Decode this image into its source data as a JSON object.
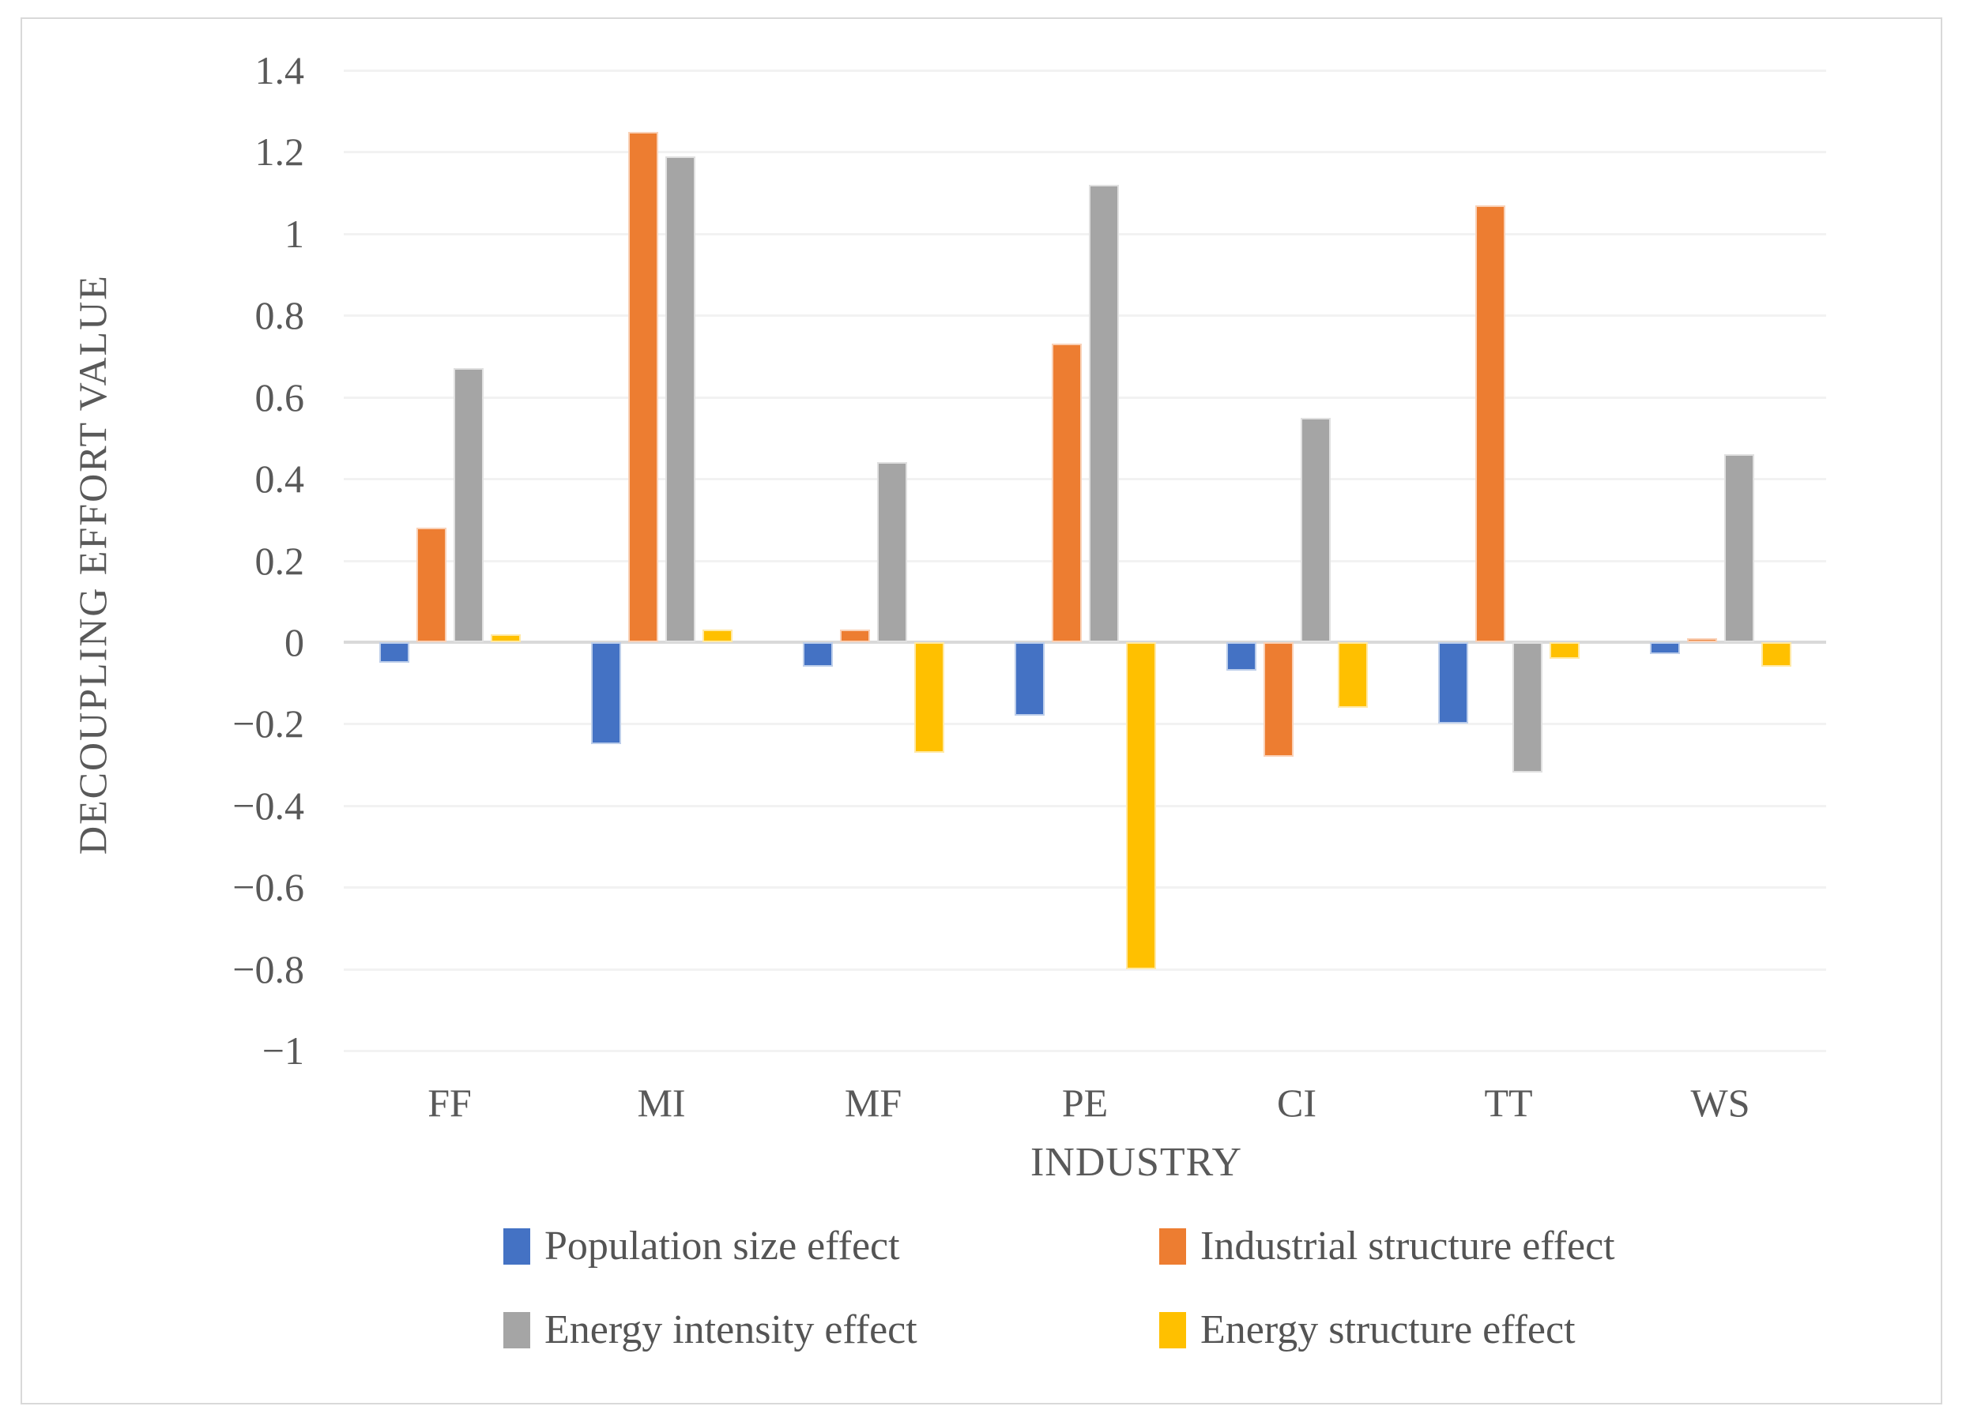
{
  "chart_data": {
    "type": "bar",
    "title": "",
    "categories": [
      "FF",
      "MI",
      "MF",
      "PE",
      "CI",
      "TT",
      "WS"
    ],
    "series": [
      {
        "name": "Population size effect",
        "color": "#4472C4",
        "values": [
          -0.05,
          -0.25,
          -0.06,
          -0.18,
          -0.07,
          -0.2,
          -0.03
        ]
      },
      {
        "name": "Industrial structure effect",
        "color": "#ED7D31",
        "values": [
          0.28,
          1.25,
          0.03,
          0.73,
          -0.28,
          1.07,
          0.01
        ]
      },
      {
        "name": "Energy intensity effect",
        "color": "#A5A5A5",
        "values": [
          0.67,
          1.19,
          0.44,
          1.12,
          0.55,
          -0.32,
          0.46
        ]
      },
      {
        "name": "Energy structure effect",
        "color": "#FFC000",
        "values": [
          0.02,
          0.03,
          -0.27,
          -0.8,
          -0.16,
          -0.04,
          -0.06
        ]
      }
    ],
    "xlabel": "INDUSTRY",
    "ylabel": "DECOUPLING EFFORT VALUE",
    "ylim": [
      -1,
      1.4
    ],
    "ytick_step": 0.2,
    "ytick_labels": [
      "1.4",
      "1.2",
      "1",
      "0.8",
      "0.6",
      "0.4",
      "0.2",
      "0",
      "−0.2",
      "−0.4",
      "−0.6",
      "−0.8",
      "−1"
    ],
    "grid": true,
    "legend_position": "bottom",
    "colors": {
      "gridline": "#f2f2f2",
      "zero_axis": "#d9d9d9",
      "text": "#595959",
      "frame_border": "#d9d9d9",
      "background": "#ffffff"
    }
  }
}
